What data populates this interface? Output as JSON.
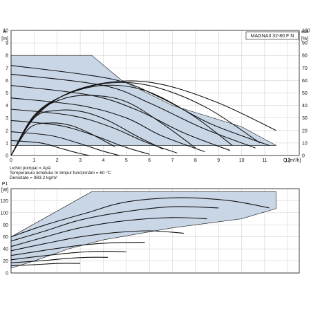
{
  "model_label": "MAGNA3 32-80 F N",
  "fluid_info": [
    "Lichid pompat = Apă",
    "Temperatura lichidului în timpul funcționării = 60 °C",
    "Densitate = 983.2 kg/m³"
  ],
  "colors": {
    "band": "#c9d6e6",
    "curve": "#111111",
    "grid": "#c8c8c8"
  },
  "chart_data": [
    {
      "type": "line",
      "xlabel": "Q [m³/h]",
      "ylabel_top": "H",
      "ylabel_unit": "[m]",
      "y2label_top": "eta",
      "y2label_unit": "[%]",
      "xlim": [
        0,
        12.5
      ],
      "ylim": [
        0,
        10
      ],
      "y2lim": [
        0,
        100
      ],
      "x_ticks": [
        0,
        1,
        2,
        3,
        4,
        5,
        6,
        7,
        8,
        9,
        10,
        11,
        12
      ],
      "y_ticks": [
        0,
        1,
        2,
        3,
        4,
        5,
        6,
        7,
        8,
        9,
        10
      ],
      "y2_ticks": [
        0,
        10,
        20,
        30,
        40,
        50,
        60,
        70,
        80,
        90,
        100
      ],
      "grid": true,
      "operating_envelope": [
        [
          0,
          8
        ],
        [
          3.5,
          8
        ],
        [
          4.8,
          6
        ],
        [
          7,
          4
        ],
        [
          10,
          2.3
        ],
        [
          11.5,
          0.8
        ],
        [
          0,
          0.8
        ]
      ],
      "head_curves": [
        {
          "values": [
            [
              0,
              7.2
            ],
            [
              4.4,
              6.1
            ],
            [
              6.5,
              4.6
            ],
            [
              8.7,
              2.5
            ],
            [
              11.2,
              0.8
            ]
          ]
        },
        {
          "values": [
            [
              0,
              6.5
            ],
            [
              4,
              5.6
            ],
            [
              6,
              4.2
            ],
            [
              8.3,
              2.2
            ],
            [
              10.6,
              0.6
            ]
          ]
        },
        {
          "values": [
            [
              0,
              5.6
            ],
            [
              3.5,
              4.8
            ],
            [
              5.5,
              3.6
            ],
            [
              7.5,
              1.8
            ],
            [
              9.5,
              0.4
            ]
          ]
        },
        {
          "values": [
            [
              0,
              4.6
            ],
            [
              3,
              4
            ],
            [
              5,
              3
            ],
            [
              6.5,
              1.6
            ],
            [
              8.4,
              0.3
            ]
          ]
        },
        {
          "values": [
            [
              0,
              3.7
            ],
            [
              2.6,
              3.2
            ],
            [
              4.3,
              2.3
            ],
            [
              5.8,
              1.1
            ],
            [
              7.2,
              0.2
            ]
          ]
        },
        {
          "values": [
            [
              0,
              2.8
            ],
            [
              2.1,
              2.4
            ],
            [
              3.6,
              1.6
            ],
            [
              4.9,
              0.7
            ],
            [
              6,
              0.1
            ]
          ]
        },
        {
          "values": [
            [
              0,
              1.9
            ],
            [
              1.7,
              1.6
            ],
            [
              2.9,
              1
            ],
            [
              3.9,
              0.4
            ],
            [
              4.7,
              0
            ]
          ]
        },
        {
          "values": [
            [
              0,
              1.2
            ],
            [
              1.3,
              1
            ],
            [
              2.1,
              0.6
            ],
            [
              2.9,
              0.2
            ],
            [
              3.4,
              0
            ]
          ]
        }
      ],
      "efficiency_curves": [
        {
          "values": [
            [
              0,
              0
            ],
            [
              1,
              30
            ],
            [
              2.5,
              50
            ],
            [
              4.5,
              59
            ],
            [
              6.5,
              57
            ],
            [
              9,
              42
            ],
            [
              11.5,
              20
            ]
          ]
        },
        {
          "values": [
            [
              0,
              0
            ],
            [
              1,
              31
            ],
            [
              2.4,
              49
            ],
            [
              4.3,
              58
            ],
            [
              6.2,
              55
            ],
            [
              8.5,
              38
            ],
            [
              10.8,
              10
            ]
          ]
        },
        {
          "values": [
            [
              0,
              0
            ],
            [
              1,
              32
            ],
            [
              2.3,
              48
            ],
            [
              4,
              56
            ],
            [
              5.8,
              52
            ],
            [
              7.8,
              33
            ],
            [
              9.6,
              8
            ]
          ]
        },
        {
          "values": [
            [
              0,
              0
            ],
            [
              1,
              32
            ],
            [
              2.2,
              45
            ],
            [
              3.5,
              48
            ],
            [
              5,
              43
            ],
            [
              6.6,
              25
            ],
            [
              8,
              6
            ]
          ]
        },
        {
          "values": [
            [
              0,
              0
            ],
            [
              1,
              30
            ],
            [
              2,
              36
            ],
            [
              3.1,
              35
            ],
            [
              4.2,
              28
            ],
            [
              5.5,
              15
            ],
            [
              6.6,
              5
            ]
          ]
        },
        {
          "values": [
            [
              0,
              0
            ],
            [
              0.8,
              22
            ],
            [
              1.7,
              26
            ],
            [
              2.6,
              24
            ],
            [
              3.5,
              17
            ],
            [
              4.5,
              7
            ]
          ]
        }
      ]
    },
    {
      "type": "line",
      "ylabel_top": "P1",
      "ylabel_unit": "[W]",
      "xlim": [
        0,
        12.5
      ],
      "ylim": [
        0,
        140
      ],
      "y_ticks": [
        0,
        20,
        40,
        60,
        80,
        100,
        120
      ],
      "grid": true,
      "operating_envelope": [
        [
          0,
          8
        ],
        [
          0,
          60
        ],
        [
          3.5,
          135
        ],
        [
          11.5,
          135
        ],
        [
          11.5,
          107
        ],
        [
          10,
          90
        ],
        [
          7,
          75
        ],
        [
          4,
          55
        ],
        [
          2.5,
          40
        ],
        [
          1,
          20
        ],
        [
          0,
          8
        ]
      ],
      "power_curves": [
        {
          "values": [
            [
              0,
              60
            ],
            [
              1.5,
              80
            ],
            [
              3.3,
              100
            ],
            [
              5,
              118
            ],
            [
              7.3,
              125
            ],
            [
              9.5,
              120
            ],
            [
              11.2,
              108
            ]
          ]
        },
        {
          "values": [
            [
              0,
              53
            ],
            [
              1.5,
              70
            ],
            [
              3,
              88
            ],
            [
              5,
              102
            ],
            [
              7,
              110
            ],
            [
              9,
              108
            ]
          ]
        },
        {
          "values": [
            [
              0,
              44
            ],
            [
              1.5,
              60
            ],
            [
              3,
              75
            ],
            [
              5,
              87
            ],
            [
              7,
              92
            ],
            [
              8.5,
              90
            ]
          ]
        },
        {
          "values": [
            [
              0,
              37
            ],
            [
              1.5,
              49
            ],
            [
              3,
              60
            ],
            [
              4.5,
              67
            ],
            [
              6,
              70
            ],
            [
              7.5,
              66
            ]
          ]
        },
        {
          "values": [
            [
              0,
              29
            ],
            [
              1.5,
              38
            ],
            [
              3,
              46
            ],
            [
              4.3,
              50
            ],
            [
              5.8,
              51
            ]
          ]
        },
        {
          "values": [
            [
              0,
              22
            ],
            [
              1.3,
              28
            ],
            [
              2.8,
              34
            ],
            [
              4,
              36
            ],
            [
              5,
              35
            ]
          ]
        },
        {
          "values": [
            [
              0,
              17
            ],
            [
              1.2,
              20
            ],
            [
              2.4,
              24
            ],
            [
              3.4,
              26
            ],
            [
              4.2,
              26
            ]
          ]
        },
        {
          "values": [
            [
              0,
              12
            ],
            [
              1.1,
              14
            ],
            [
              2.1,
              16
            ],
            [
              3,
              16
            ]
          ]
        }
      ]
    }
  ]
}
